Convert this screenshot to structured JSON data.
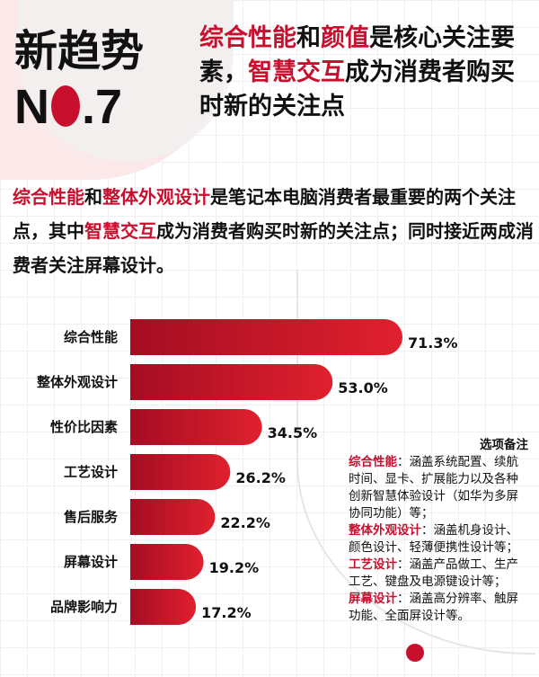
{
  "header": {
    "title": "新趋势",
    "number_prefix": "N",
    "number_suffix": ".7",
    "headline": [
      {
        "text": "综合性能",
        "red": true
      },
      {
        "text": "和",
        "red": false
      },
      {
        "text": "颜值",
        "red": true
      },
      {
        "text": "是核心关注要素，",
        "red": false
      },
      {
        "text": "智慧交互",
        "red": true
      },
      {
        "text": "成为消费者购买时新的关注点",
        "red": false
      }
    ]
  },
  "summary": [
    {
      "text": "综合性能",
      "red": true
    },
    {
      "text": "和",
      "red": false
    },
    {
      "text": "整体外观设计",
      "red": true
    },
    {
      "text": "是笔记本电脑消费者最重要的两个关注点，其中",
      "red": false
    },
    {
      "text": "智慧交互",
      "red": true
    },
    {
      "text": "成为消费者购买时新的关注点；同时接近两成消费者关注屏幕设计。",
      "red": false
    }
  ],
  "chart_data": {
    "type": "bar",
    "orientation": "horizontal",
    "categories": [
      "综合性能",
      "整体外观设计",
      "性价比因素",
      "工艺设计",
      "售后服务",
      "屏幕设计",
      "品牌影响力"
    ],
    "values": [
      71.3,
      53.0,
      34.5,
      26.2,
      22.2,
      19.2,
      17.2
    ],
    "value_labels": [
      "71.3%",
      "53.0%",
      "34.5%",
      "26.2%",
      "22.2%",
      "19.2%",
      "17.2%"
    ],
    "unit": "%",
    "xlim": [
      0,
      100
    ],
    "colors": {
      "bar_start": "#a50d22",
      "bar_end": "#e0202e"
    }
  },
  "notes": {
    "heading": "选项备注",
    "items": [
      {
        "term": "综合性能",
        "desc": "：涵盖系统配置、续航时间、显卡、扩展能力以及各种创新智慧体验设计（如华为多屏协同功能）等；"
      },
      {
        "term": "整体外观设计",
        "desc": "：涵盖机身设计、颜色设计、轻薄便携性设计等；"
      },
      {
        "term": "工艺设计",
        "desc": "：涵盖产品做工、生产工艺、键盘及电源键设计等；"
      },
      {
        "term": "屏幕设计",
        "desc": "：涵盖高分辨率、触屏功能、全面屏设计等。"
      }
    ]
  }
}
